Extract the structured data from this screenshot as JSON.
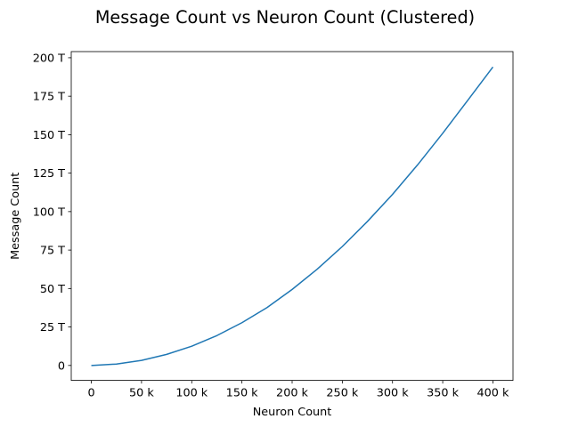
{
  "chart_data": {
    "type": "line",
    "title": "Message Count vs Neuron Count (Clustered)",
    "xlabel": "Neuron Count",
    "ylabel": "Message Count",
    "xlim": [
      -20000,
      420000
    ],
    "ylim": [
      -9700000000000.0,
      204000000000000.0
    ],
    "xticks": [
      {
        "value": 0,
        "label": "0"
      },
      {
        "value": 50000,
        "label": "50 k"
      },
      {
        "value": 100000,
        "label": "100 k"
      },
      {
        "value": 150000,
        "label": "150 k"
      },
      {
        "value": 200000,
        "label": "200 k"
      },
      {
        "value": 250000,
        "label": "250 k"
      },
      {
        "value": 300000,
        "label": "300 k"
      },
      {
        "value": 350000,
        "label": "350 k"
      },
      {
        "value": 400000,
        "label": "400 k"
      }
    ],
    "yticks": [
      {
        "value": 0,
        "label": "0"
      },
      {
        "value": 25000000000000.0,
        "label": "25 T"
      },
      {
        "value": 50000000000000.0,
        "label": "50 T"
      },
      {
        "value": 75000000000000.0,
        "label": "75 T"
      },
      {
        "value": 100000000000000.0,
        "label": "100 T"
      },
      {
        "value": 125000000000000.0,
        "label": "125 T"
      },
      {
        "value": 150000000000000.0,
        "label": "150 T"
      },
      {
        "value": 175000000000000.0,
        "label": "175 T"
      },
      {
        "value": 200000000000000.0,
        "label": "200 T"
      }
    ],
    "grid": false,
    "series": [
      {
        "color": "#1f77b4",
        "points": [
          [
            0,
            0
          ],
          [
            25000,
            900000000000.0
          ],
          [
            50000,
            3300000000000.0
          ],
          [
            75000,
            7200000000000.0
          ],
          [
            100000,
            12500000000000.0
          ],
          [
            125000,
            19400000000000.0
          ],
          [
            150000,
            27800000000000.0
          ],
          [
            175000,
            37600000000000.0
          ],
          [
            200000,
            49400000000000.0
          ],
          [
            225000,
            62600000000000.0
          ],
          [
            250000,
            77300000000000.0
          ],
          [
            275000,
            93600000000000.0
          ],
          [
            300000,
            111200000000000.0
          ],
          [
            325000,
            130400000000000.0
          ],
          [
            350000,
            150900000000000.0
          ],
          [
            375000,
            172400000000000.0
          ],
          [
            400000,
            194000000000000.0
          ]
        ]
      }
    ]
  }
}
